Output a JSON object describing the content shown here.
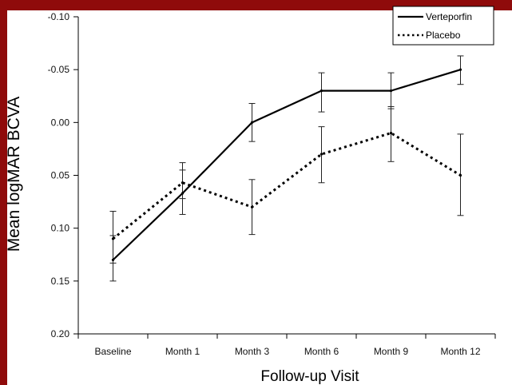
{
  "chart_data": {
    "type": "line",
    "title": "",
    "xlabel": "Follow-up Visit",
    "ylabel": "Mean logMAR BCVA",
    "categories": [
      "Baseline",
      "Month 1",
      "Month 3",
      "Month 6",
      "Month 9",
      "Month 12"
    ],
    "y_axis_inverted": true,
    "ylim": [
      -0.1,
      0.2
    ],
    "yticks": [
      "-0.10",
      "-0.05",
      "0.00",
      "0.05",
      "0.10",
      "0.15",
      "0.20"
    ],
    "ytick_values": [
      -0.1,
      -0.05,
      0.0,
      0.05,
      0.1,
      0.15,
      0.2
    ],
    "grid": false,
    "legend_position": "top-right",
    "series": [
      {
        "name": "Verteporfin",
        "line_style": "solid",
        "values": [
          0.13,
          0.067,
          0.0,
          -0.03,
          -0.03,
          -0.05
        ],
        "error_low": [
          0.15,
          0.087,
          0.018,
          -0.01,
          -0.013,
          -0.036
        ],
        "error_high": [
          0.107,
          0.045,
          -0.018,
          -0.047,
          -0.047,
          -0.063
        ]
      },
      {
        "name": "Placebo",
        "line_style": "dotted",
        "values": [
          0.11,
          0.057,
          0.08,
          0.03,
          0.01,
          0.05
        ],
        "error_low": [
          0.133,
          0.072,
          0.106,
          0.057,
          0.037,
          0.088
        ],
        "error_high": [
          0.084,
          0.038,
          0.054,
          0.004,
          -0.015,
          0.011
        ]
      }
    ]
  }
}
